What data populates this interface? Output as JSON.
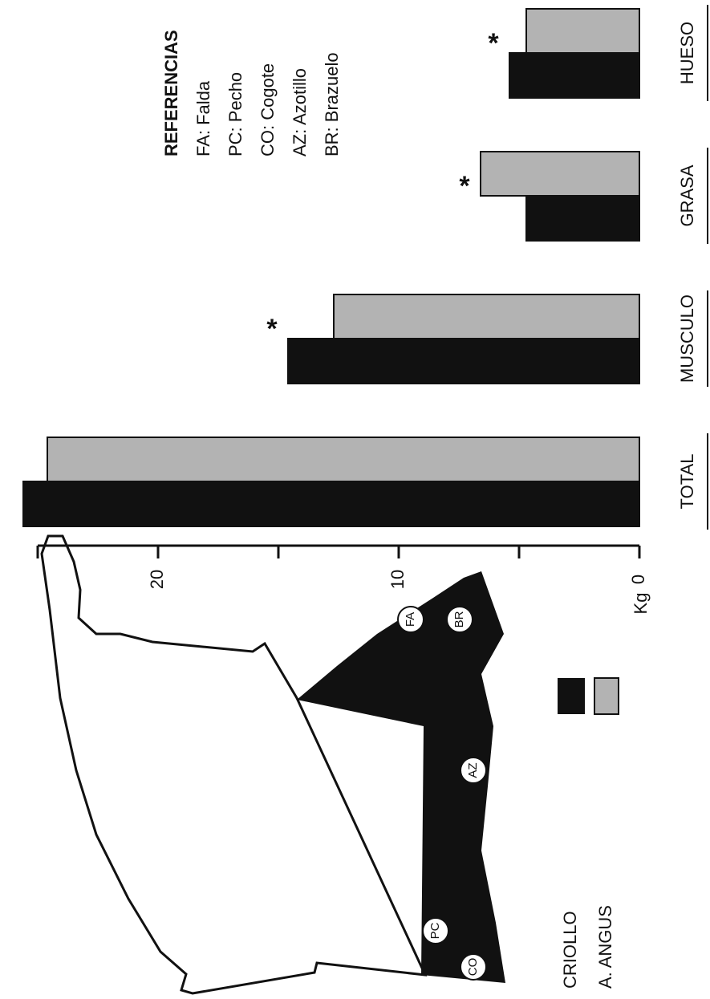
{
  "chart_data": {
    "type": "bar",
    "categories": [
      "TOTAL",
      "MUSCULO",
      "GRASA",
      "HUESO"
    ],
    "series": [
      {
        "name": "CRIOLLO",
        "color": "#111111",
        "values": [
          25.6,
          14.6,
          4.7,
          5.4
        ]
      },
      {
        "name": "A. ANGUS",
        "color": "#b3b3b3",
        "values": [
          24.6,
          12.7,
          6.6,
          4.7
        ]
      }
    ],
    "ylabel": "Kg",
    "ylim": [
      0,
      25
    ],
    "yticks": [
      0,
      10,
      20
    ],
    "minor_yticks": [
      5,
      15,
      25
    ],
    "annotations": [
      {
        "text": "*",
        "category": "MUSCULO"
      },
      {
        "text": "*",
        "category": "GRASA"
      },
      {
        "text": "*",
        "category": "HUESO"
      }
    ]
  },
  "references": {
    "title": "REFERENCIAS",
    "items": [
      "FA: Falda",
      "PC: Pecho",
      "CO: Cogote",
      "AZ: Azotillo",
      "BR: Brazuelo"
    ]
  },
  "diagram": {
    "labels": [
      "FA",
      "BR",
      "AZ",
      "PC",
      "CO"
    ]
  }
}
